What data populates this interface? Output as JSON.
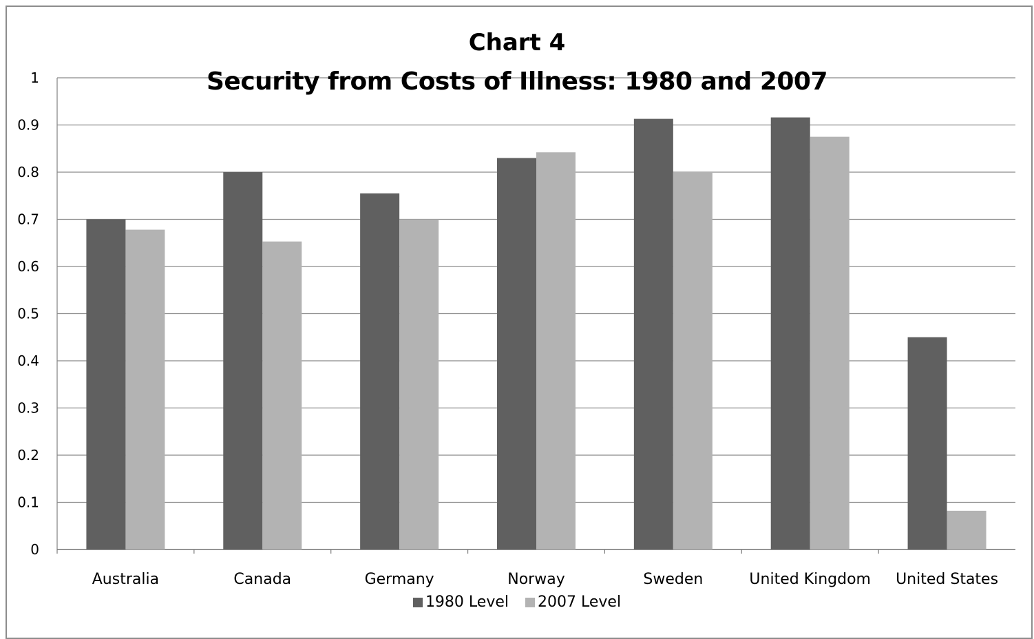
{
  "chart_data": {
    "type": "bar",
    "title": "Chart 4",
    "subtitle": "Security from Costs of Illness: 1980 and 2007",
    "categories": [
      "Australia",
      "Canada",
      "Germany",
      "Norway",
      "Sweden",
      "United Kingdom",
      "United States"
    ],
    "series": [
      {
        "name": "1980 Level",
        "color": "#606060",
        "values": [
          0.7,
          0.8,
          0.755,
          0.83,
          0.913,
          0.916,
          0.45
        ]
      },
      {
        "name": "2007 Level",
        "color": "#b3b3b3",
        "values": [
          0.678,
          0.653,
          0.7,
          0.842,
          0.8,
          0.875,
          0.082
        ]
      }
    ],
    "xlabel": "",
    "ylabel": "",
    "ylim": [
      0,
      1
    ],
    "yticks": [
      "0",
      "0.1",
      "0.2",
      "0.3",
      "0.4",
      "0.5",
      "0.6",
      "0.7",
      "0.8",
      "0.9",
      "1"
    ],
    "grid": true,
    "legend_position": "bottom"
  }
}
